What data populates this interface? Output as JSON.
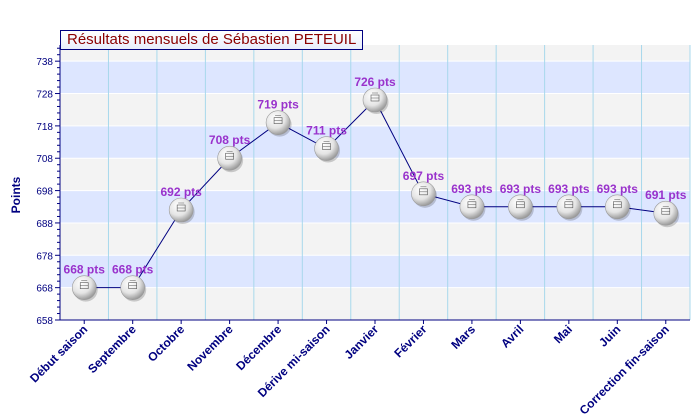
{
  "colors": {
    "title_text": "#8b0000",
    "axis_text": "#000080",
    "data_label": "#9932cc",
    "line": "#000080",
    "band_blue": "#dde6ff",
    "band_grey": "#f3f3f3",
    "grid": "#a8d8ec"
  },
  "chart_data": {
    "type": "line",
    "title": "Résultats mensuels de Sébastien PETEUIL",
    "xlabel": "",
    "ylabel": "Points",
    "ylim": [
      658,
      743
    ],
    "yticks": [
      658,
      668,
      678,
      688,
      698,
      708,
      718,
      728,
      738
    ],
    "grid": true,
    "legend": "none",
    "marker": "ping-pong-ball-icon",
    "categories": [
      "Début saison",
      "Septembre",
      "Octobre",
      "Novembre",
      "Décembre",
      "Dérive mi-saison",
      "Janvier",
      "Février",
      "Mars",
      "Avril",
      "Mai",
      "Juin",
      "Correction fin-saison"
    ],
    "values": [
      668,
      668,
      692,
      708,
      719,
      711,
      726,
      697,
      693,
      693,
      693,
      693,
      691
    ],
    "data_labels": [
      "668 pts",
      "668 pts",
      "692 pts",
      "708 pts",
      "719 pts",
      "711 pts",
      "726 pts",
      "697 pts",
      "693 pts",
      "693 pts",
      "693 pts",
      "693 pts",
      "691 pts"
    ]
  }
}
